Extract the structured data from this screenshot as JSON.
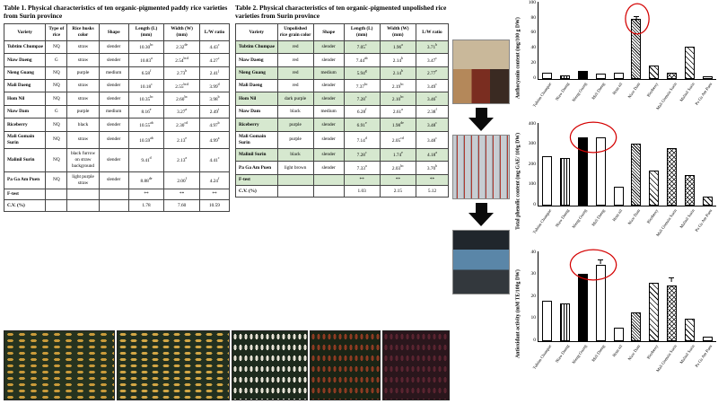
{
  "table1": {
    "title": "Table 1. Physical characteristics of ten organic-pigmented paddy rice varieties from Surin province",
    "headers": [
      "Variety",
      "Type of rice",
      "Rice husks color",
      "Shape",
      "Length (L) (mm)",
      "Width (W) (mm)",
      "L/W ratio"
    ],
    "rows": [
      {
        "cells": [
          "Tubtim Chumpae",
          "NQ",
          "straw",
          "slender",
          "10.30bc",
          "2.32de",
          "4.43c"
        ],
        "highlight": false
      },
      {
        "cells": [
          "Niaw Daeng",
          "G",
          "straw",
          "slender",
          "10.83a",
          "2.54bcd",
          "4.27c"
        ],
        "highlight": false
      },
      {
        "cells": [
          "Nieng Guang",
          "NQ",
          "purple",
          "medium",
          "6.58f",
          "2.73b",
          "2.41j"
        ],
        "highlight": false
      },
      {
        "cells": [
          "Mali Daeng",
          "NQ",
          "straw",
          "slender",
          "10.18c",
          "2.55bcd",
          "3.99d"
        ],
        "highlight": false
      },
      {
        "cells": [
          "Hom Nil",
          "NQ",
          "straw",
          "slender",
          "10.35bc",
          "2.60bc",
          "3.98b"
        ],
        "highlight": false
      },
      {
        "cells": [
          "Niaw Dam",
          "G",
          "purple",
          "medium",
          "8.16e",
          "3.27a",
          "2.49i"
        ],
        "highlight": false
      },
      {
        "cells": [
          "Riceberry",
          "NQ",
          "black",
          "slender",
          "10.55ab",
          "2.30cd",
          "4.97b"
        ],
        "highlight": false
      },
      {
        "cells": [
          "Mali Gomain Surin",
          "NQ",
          "straw",
          "slender",
          "10.59ab",
          "2.13e",
          "4.99a"
        ],
        "highlight": false
      },
      {
        "cells": [
          "Malinil Surin",
          "NQ",
          "black furrow on straw background",
          "slender",
          "9.41d",
          "2.13a",
          "4.41c"
        ],
        "highlight": false
      },
      {
        "cells": [
          "Pa Ga Am Puen",
          "NQ",
          "light purple straw",
          "slender",
          "8.88de",
          "2.00f",
          "4.24f"
        ],
        "highlight": false
      },
      {
        "cells": [
          "F-test",
          "",
          "",
          "",
          "**",
          "**",
          "**"
        ],
        "highlight": false
      },
      {
        "cells": [
          "C.V. (%)",
          "",
          "",
          "",
          "1.78",
          "7.60",
          "10.59"
        ],
        "highlight": false
      }
    ]
  },
  "table2": {
    "title": "Table 2. Physical characteristics of ten organic-pigmented unpolished rice varieties from Surin province",
    "headers": [
      "Variety",
      "Unpolished rice grain color",
      "Shape",
      "Length (L) (mm)",
      "Width (W) (mm)",
      "L/W ratio"
    ],
    "rows": [
      {
        "cells": [
          "Tubtim Chumpae",
          "red",
          "slender",
          "7.05c",
          "1.96a",
          "3.71b"
        ],
        "highlight": true
      },
      {
        "cells": [
          "Niaw Daeng",
          "red",
          "slender",
          "7.44ab",
          "2.14b",
          "3.47c"
        ],
        "highlight": false
      },
      {
        "cells": [
          "Nieng Guang",
          "red",
          "medium",
          "5.94g",
          "2.14b",
          "2.77e"
        ],
        "highlight": true
      },
      {
        "cells": [
          "Mali Daeng",
          "red",
          "slender",
          "7.37bc",
          "2.19bc",
          "3.49c"
        ],
        "highlight": false
      },
      {
        "cells": [
          "Hom Nil",
          "dark purple",
          "slender",
          "7.28c",
          "2.10bc",
          "3.46c"
        ],
        "highlight": true
      },
      {
        "cells": [
          "Niaw Dam",
          "black",
          "medium",
          "6.28f",
          "2.61a",
          "2.38f"
        ],
        "highlight": false
      },
      {
        "cells": [
          "Riceberry",
          "purple",
          "slender",
          "6.91e",
          "1.98de",
          "3.48c"
        ],
        "highlight": true
      },
      {
        "cells": [
          "Mali Gomain Surin",
          "purple",
          "slender",
          "7.14d",
          "2.05cd",
          "3.48c"
        ],
        "highlight": false
      },
      {
        "cells": [
          "Malinil Surin",
          "black",
          "slender",
          "7.28c",
          "1.74e",
          "4.18a"
        ],
        "highlight": true
      },
      {
        "cells": [
          "Pa Ga Am Puen",
          "light brown",
          "slender",
          "7.33a",
          "2.03bc",
          "3.70b"
        ],
        "highlight": false
      },
      {
        "cells": [
          "F-test",
          "",
          "",
          "**",
          "**",
          "**"
        ],
        "highlight": true
      },
      {
        "cells": [
          "C.V. (%)",
          "",
          "",
          "1.03",
          "2.15",
          "5.12"
        ],
        "highlight": false
      }
    ]
  },
  "chart_data": [
    {
      "type": "bar",
      "ylabel": "Anthocyanin content (mg/100 g DW)",
      "xlabel": "",
      "title": "",
      "ylim": [
        0,
        100
      ],
      "yticks": [
        0,
        20,
        40,
        60,
        80,
        100
      ],
      "categories": [
        "Tubtim Chumpae",
        "Niaw Daeng",
        "Nieng Guang",
        "Mali Daeng",
        "Hom nil",
        "Niaw Dam",
        "Riceberry",
        "Mali Gomain Surin",
        "Malinil Surin",
        "Pa Ga Am Puen"
      ],
      "values": [
        8,
        5,
        10,
        7,
        8,
        78,
        18,
        8,
        42,
        3
      ],
      "fills": [
        "white",
        "vstripe",
        "black",
        "white",
        "white",
        "hdense",
        "hwide",
        "cross",
        "hwide",
        "white"
      ],
      "errors": [
        0,
        0,
        0,
        0,
        0,
        2,
        0,
        0,
        0,
        0
      ],
      "annotation": {
        "start": 5,
        "end": 5
      },
      "grid": false,
      "legend": "none"
    },
    {
      "type": "bar",
      "ylabel": "Total phenolic content (mg GAE/ 100g DW)",
      "xlabel": "",
      "title": "",
      "ylim": [
        0,
        400
      ],
      "yticks": [
        0,
        100,
        200,
        300,
        400
      ],
      "categories": [
        "Tubtim Chumpae",
        "Niaw Daeng",
        "Nieng Guang",
        "Mali Daeng",
        "Hom nil",
        "Niaw Dam",
        "Riceberry",
        "Mali Gomain Surin",
        "Malinil Surin",
        "Pa Ga Am Puen"
      ],
      "values": [
        240,
        230,
        330,
        330,
        90,
        300,
        170,
        280,
        150,
        45
      ],
      "fills": [
        "white",
        "vstripe",
        "black",
        "white",
        "white",
        "hdense",
        "hwide",
        "cross",
        "cross",
        "hwide"
      ],
      "errors": [
        0,
        0,
        0,
        0,
        0,
        0,
        0,
        0,
        0,
        0
      ],
      "annotation": {
        "start": 2,
        "end": 3
      },
      "grid": false,
      "legend": "none"
    },
    {
      "type": "bar",
      "ylabel": "Antioxidant activity (mM TE/100g DW)",
      "xlabel": "",
      "title": "",
      "ylim": [
        0,
        40
      ],
      "yticks": [
        0,
        10,
        20,
        30,
        40
      ],
      "categories": [
        "Tubtim Chumpae",
        "Niaw Daeng",
        "Nieng Guang",
        "Mali Daeng",
        "Hom nil",
        "Niaw Dam",
        "Riceberry",
        "Mali Gomain Surin",
        "Malinil Surin",
        "Pa Ga Am Puen"
      ],
      "values": [
        18,
        17,
        30,
        34,
        6,
        13,
        26,
        25,
        10,
        2
      ],
      "fills": [
        "white",
        "vstripe",
        "black",
        "white",
        "white",
        "hdense",
        "hwide",
        "cross",
        "hwide",
        "white"
      ],
      "errors": [
        0,
        0,
        0,
        2,
        0,
        0,
        0,
        3,
        0,
        0
      ],
      "annotation": {
        "start": 2,
        "end": 3
      },
      "grid": false,
      "legend": "none"
    }
  ]
}
